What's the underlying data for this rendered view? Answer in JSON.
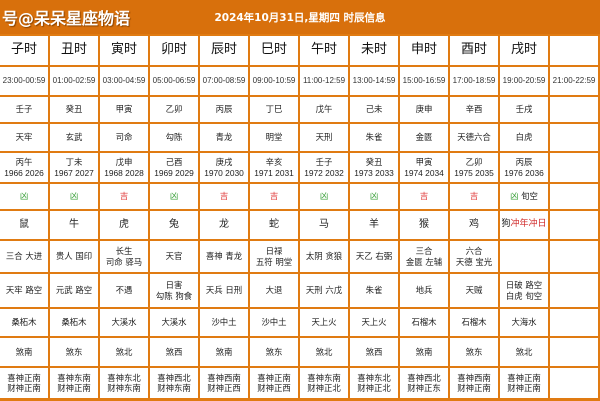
{
  "header": {
    "watermark": "号@呆呆星座物语",
    "title": "2024年10月31日,星期四 时辰信息"
  },
  "colors": {
    "banner": "#d8700c",
    "border": "#e07b12",
    "ji": "#e03a3a",
    "xiong": "#3aa03a"
  },
  "columns": [
    {
      "name": "子时",
      "time": "23:00-00:59",
      "ganzhi": "壬子",
      "star": "天牢",
      "clash": "丙午",
      "years": "1966 2026",
      "luck": "凶",
      "luck_note": "",
      "animal": "鼠",
      "animal_note": "",
      "good": [
        "三合 大进"
      ],
      "bad": [
        "天牢 路空"
      ],
      "nayin": "桑柘木",
      "sha": "煞南",
      "god": [
        "喜神正南",
        "财神正南"
      ]
    },
    {
      "name": "丑时",
      "time": "01:00-02:59",
      "ganzhi": "癸丑",
      "star": "玄武",
      "clash": "丁未",
      "years": "1967 2027",
      "luck": "凶",
      "luck_note": "",
      "animal": "牛",
      "animal_note": "",
      "good": [
        "贵人 国印"
      ],
      "bad": [
        "元武 路空"
      ],
      "nayin": "桑柘木",
      "sha": "煞东",
      "god": [
        "喜神东南",
        "财神正南"
      ]
    },
    {
      "name": "寅时",
      "time": "03:00-04:59",
      "ganzhi": "甲寅",
      "star": "司命",
      "clash": "戊申",
      "years": "1968 2028",
      "luck": "吉",
      "luck_note": "",
      "animal": "虎",
      "animal_note": "",
      "good": [
        "长生",
        "司命 驿马"
      ],
      "bad": [
        "不遇"
      ],
      "nayin": "大溪水",
      "sha": "煞北",
      "god": [
        "喜神东北",
        "财神东南"
      ]
    },
    {
      "name": "卯时",
      "time": "05:00-06:59",
      "ganzhi": "乙卯",
      "star": "勾陈",
      "clash": "己酉",
      "years": "1969 2029",
      "luck": "凶",
      "luck_note": "",
      "animal": "兔",
      "animal_note": "",
      "good": [
        "天官"
      ],
      "bad": [
        "日害",
        "勾陈 狗食"
      ],
      "nayin": "大溪水",
      "sha": "煞西",
      "god": [
        "喜神西北",
        "财神东南"
      ]
    },
    {
      "name": "辰时",
      "time": "07:00-08:59",
      "ganzhi": "丙辰",
      "star": "青龙",
      "clash": "庚戌",
      "years": "1970 2030",
      "luck": "吉",
      "luck_note": "",
      "animal": "龙",
      "animal_note": "",
      "good": [
        "喜神 青龙"
      ],
      "bad": [
        "天兵 日刑"
      ],
      "nayin": "沙中土",
      "sha": "煞南",
      "god": [
        "喜神西南",
        "财神正西"
      ]
    },
    {
      "name": "巳时",
      "time": "09:00-10:59",
      "ganzhi": "丁巳",
      "star": "明堂",
      "clash": "辛亥",
      "years": "1971 2031",
      "luck": "吉",
      "luck_note": "",
      "animal": "蛇",
      "animal_note": "",
      "good": [
        "日禄",
        "五符 明堂"
      ],
      "bad": [
        "大退"
      ],
      "nayin": "沙中土",
      "sha": "煞东",
      "god": [
        "喜神正南",
        "财神正西"
      ]
    },
    {
      "name": "午时",
      "time": "11:00-12:59",
      "ganzhi": "戊午",
      "star": "天刑",
      "clash": "壬子",
      "years": "1972 2032",
      "luck": "凶",
      "luck_note": "",
      "animal": "马",
      "animal_note": "",
      "good": [
        "太阴 贪狼"
      ],
      "bad": [
        "天刑 六戊"
      ],
      "nayin": "天上火",
      "sha": "煞北",
      "god": [
        "喜神东南",
        "财神正北"
      ]
    },
    {
      "name": "未时",
      "time": "13:00-14:59",
      "ganzhi": "己未",
      "star": "朱雀",
      "clash": "癸丑",
      "years": "1973 2033",
      "luck": "凶",
      "luck_note": "",
      "animal": "羊",
      "animal_note": "",
      "good": [
        "天乙 右弼"
      ],
      "bad": [
        "朱雀"
      ],
      "nayin": "天上火",
      "sha": "煞西",
      "god": [
        "喜神东北",
        "财神正北"
      ]
    },
    {
      "name": "申时",
      "time": "15:00-16:59",
      "ganzhi": "庚申",
      "star": "金匮",
      "clash": "甲寅",
      "years": "1974 2034",
      "luck": "吉",
      "luck_note": "",
      "animal": "猴",
      "animal_note": "",
      "good": [
        "三合",
        "金匮 左辅"
      ],
      "bad": [
        "地兵"
      ],
      "nayin": "石榴木",
      "sha": "煞南",
      "god": [
        "喜神西北",
        "财神正东"
      ]
    },
    {
      "name": "酉时",
      "time": "17:00-18:59",
      "ganzhi": "辛酉",
      "star": "天德六合",
      "clash": "乙卯",
      "years": "1975 2035",
      "luck": "吉",
      "luck_note": "",
      "animal": "鸡",
      "animal_note": "",
      "good": [
        "六合",
        "天德 宝光"
      ],
      "bad": [
        "天贼"
      ],
      "nayin": "石榴木",
      "sha": "煞东",
      "god": [
        "喜神西南",
        "财神正南"
      ]
    },
    {
      "name": "戌时",
      "time": "19:00-20:59",
      "ganzhi": "壬戌",
      "star": "白虎",
      "clash": "丙辰",
      "years": "1976 2036",
      "luck": "凶",
      "luck_note": "旬空",
      "animal": "狗",
      "animal_note": "冲年冲日",
      "good": [],
      "bad": [
        "日破 路空",
        "白虎 旬空"
      ],
      "nayin": "大海水",
      "sha": "煞北",
      "god": [
        "喜神正南",
        "财神正南"
      ]
    },
    {
      "name": "",
      "time": "21:00-22:59",
      "ganzhi": "",
      "star": "",
      "clash": "",
      "years": "",
      "luck": "",
      "luck_note": "",
      "animal": "",
      "animal_note": "",
      "good": [],
      "bad": [],
      "nayin": "",
      "sha": "",
      "god": []
    }
  ]
}
